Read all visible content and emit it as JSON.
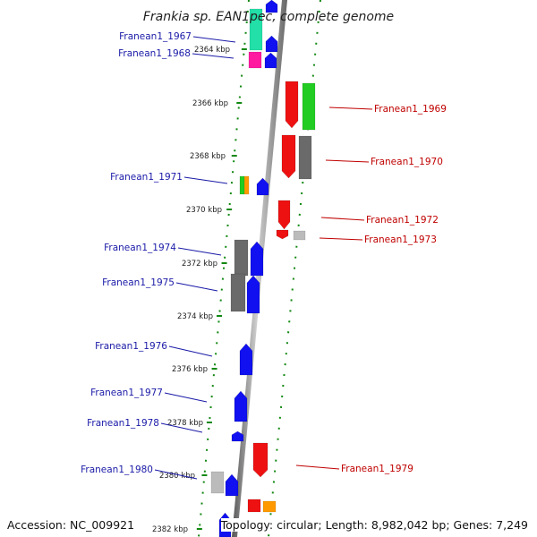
{
  "title": "Frankia sp. EAN1pec, complete genome",
  "footer": {
    "accession": "Accession: NC_009921",
    "topology": "Topology: circular; Length: 8,982,042 bp; Genes: 7,249"
  },
  "colors": {
    "forward_label": "#1a1aa8",
    "reverse_label": "#c00000",
    "blue": "#1010f0",
    "red": "#ee1111",
    "green": "#22cc22",
    "gray": "#777777",
    "light_gray": "#bbbbbb",
    "orange": "#ff9900",
    "magenta": "#ff1aa0",
    "teal": "#22e0a8",
    "dots": "#118811"
  },
  "ticks": [
    "2364 kbp",
    "2366 kbp",
    "2368 kbp",
    "2370 kbp",
    "2372 kbp",
    "2374 kbp",
    "2376 kbp",
    "2378 kbp",
    "2380 kbp",
    "2382 kbp"
  ],
  "genes_forward": [
    {
      "label": "Franean1_1967"
    },
    {
      "label": "Franean1_1968"
    },
    {
      "label": "Franean1_1971"
    },
    {
      "label": "Franean1_1974"
    },
    {
      "label": "Franean1_1975"
    },
    {
      "label": "Franean1_1976"
    },
    {
      "label": "Franean1_1977"
    },
    {
      "label": "Franean1_1978"
    },
    {
      "label": "Franean1_1980"
    }
  ],
  "genes_reverse": [
    {
      "label": "Franean1_1969"
    },
    {
      "label": "Franean1_1970"
    },
    {
      "label": "Franean1_1972"
    },
    {
      "label": "Franean1_1973"
    },
    {
      "label": "Franean1_1979"
    }
  ]
}
